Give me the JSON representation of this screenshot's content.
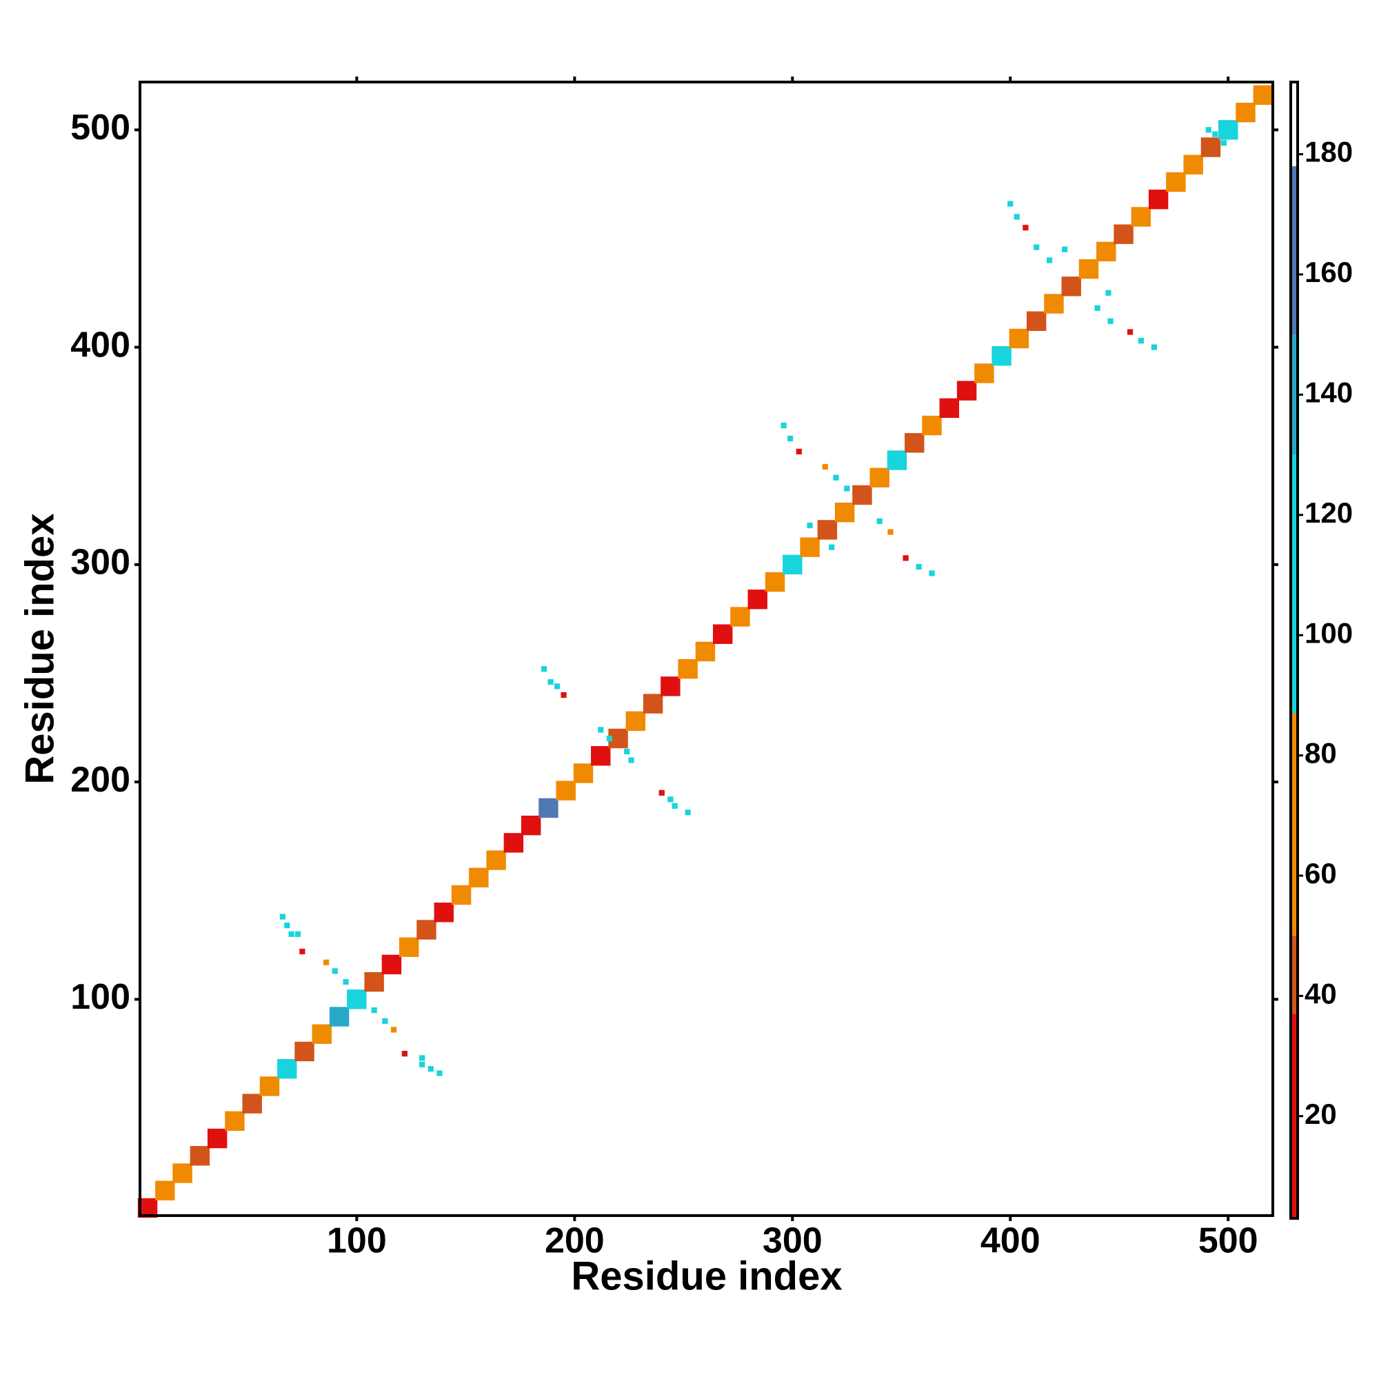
{
  "chart_data": {
    "type": "heatmap",
    "xlabel": "Residue index",
    "ylabel": "Residue index",
    "xlim": [
      0.5,
      520.5
    ],
    "ylim": [
      0.5,
      522
    ],
    "xticks": [
      100,
      200,
      300,
      400,
      500
    ],
    "yticks": [
      100,
      200,
      300,
      400,
      500
    ],
    "clim": [
      3,
      192
    ],
    "cticks": [
      20,
      40,
      60,
      80,
      100,
      120,
      140,
      160,
      180
    ],
    "colormap": {
      "values": [
        3,
        37,
        50,
        87,
        130,
        150,
        178
      ],
      "colors": [
        "#e01010",
        "#d2541a",
        "#f08a00",
        "#18d4dc",
        "#2aa8c8",
        "#5078b4",
        "#ffffff"
      ]
    },
    "diagonal": {
      "x": [
        4,
        12,
        20,
        28,
        36,
        44,
        52,
        60,
        68,
        76,
        84,
        92,
        100,
        108,
        116,
        124,
        132,
        140,
        148,
        156,
        164,
        172,
        180,
        188,
        196,
        204,
        212,
        220,
        228,
        236,
        244,
        252,
        260,
        268,
        276,
        284,
        292,
        300,
        308,
        316,
        324,
        332,
        340,
        348,
        356,
        364,
        372,
        380,
        388,
        396,
        404,
        412,
        420,
        428,
        436,
        444,
        452,
        460,
        468,
        476,
        484,
        492,
        500,
        508,
        516
      ],
      "values": [
        20,
        60,
        80,
        45,
        20,
        60,
        45,
        80,
        110,
        45,
        60,
        130,
        100,
        45,
        20,
        60,
        45,
        20,
        60,
        80,
        80,
        20,
        20,
        160,
        60,
        80,
        20,
        45,
        60,
        45,
        20,
        80,
        60,
        20,
        80,
        20,
        80,
        110,
        60,
        45,
        80,
        45,
        60,
        110,
        45,
        60,
        20,
        20,
        80,
        110,
        60,
        45,
        60,
        45,
        80,
        60,
        45,
        80,
        20,
        60,
        80,
        45,
        110,
        60,
        80
      ]
    },
    "contacts": {
      "x": [
        66,
        68,
        70,
        73,
        75,
        138,
        134,
        130,
        130,
        122,
        86,
        90,
        95,
        108,
        113,
        117,
        186,
        189,
        192,
        195,
        252,
        246,
        244,
        240,
        212,
        216,
        224,
        226,
        296,
        299,
        303,
        364,
        358,
        352,
        308,
        315,
        320,
        325,
        340,
        345,
        318,
        400,
        403,
        407,
        466,
        460,
        455,
        412,
        418,
        440,
        446,
        425,
        445,
        494,
        498,
        491
      ],
      "y": [
        138,
        134,
        130,
        130,
        122,
        66,
        68,
        70,
        73,
        75,
        117,
        113,
        108,
        95,
        90,
        86,
        252,
        246,
        244,
        240,
        186,
        189,
        192,
        195,
        224,
        220,
        214,
        210,
        364,
        358,
        352,
        296,
        299,
        303,
        318,
        345,
        340,
        335,
        320,
        315,
        308,
        466,
        460,
        455,
        400,
        403,
        407,
        446,
        440,
        418,
        412,
        445,
        425,
        498,
        494,
        500
      ],
      "values": [
        100,
        105,
        100,
        110,
        20,
        100,
        105,
        100,
        110,
        20,
        80,
        100,
        100,
        100,
        100,
        80,
        100,
        105,
        100,
        20,
        100,
        105,
        100,
        20,
        100,
        110,
        100,
        100,
        100,
        105,
        20,
        100,
        105,
        20,
        100,
        80,
        100,
        110,
        100,
        80,
        100,
        100,
        105,
        20,
        100,
        105,
        20,
        100,
        110,
        110,
        100,
        100,
        100,
        100,
        110,
        100
      ]
    }
  }
}
